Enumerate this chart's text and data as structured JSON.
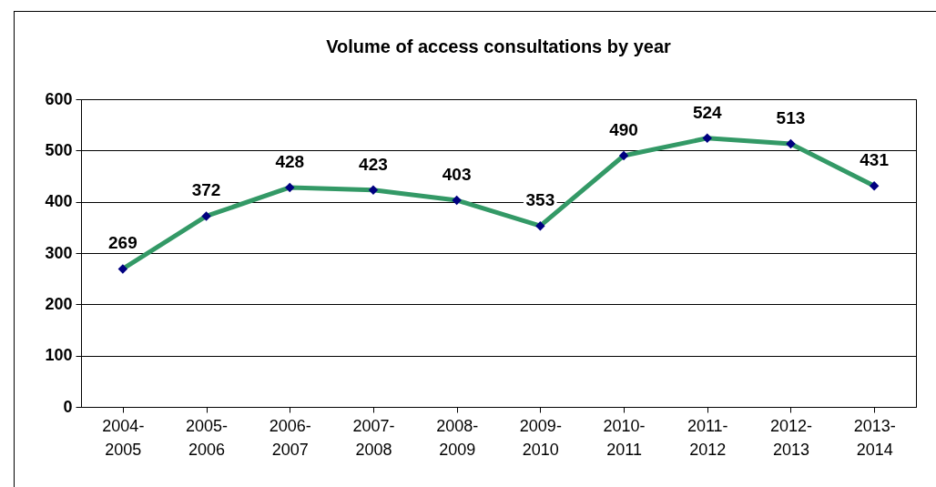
{
  "chart_data": {
    "type": "line",
    "title": "Volume of access consultations by year",
    "categories": [
      "2004-2005",
      "2005-2006",
      "2006-2007",
      "2007-2008",
      "2008-2009",
      "2009-2010",
      "2010-2011",
      "2011-2012",
      "2012-2013",
      "2013-2014"
    ],
    "series": [
      {
        "color": "#339966",
        "colors": [
          "#000080",
          "#000080",
          "#000080",
          "#000080",
          "#000080",
          "#000080",
          "#000080",
          "#000080",
          "#000080",
          "#000080"
        ],
        "values": [
          269,
          372,
          428,
          423,
          403,
          353,
          490,
          524,
          513,
          431
        ]
      }
    ],
    "ylim": [
      0,
      600
    ],
    "yticks": [
      0,
      100,
      200,
      300,
      400,
      500,
      600
    ],
    "grid": "y",
    "marker": "diamond",
    "data_labels": true
  }
}
